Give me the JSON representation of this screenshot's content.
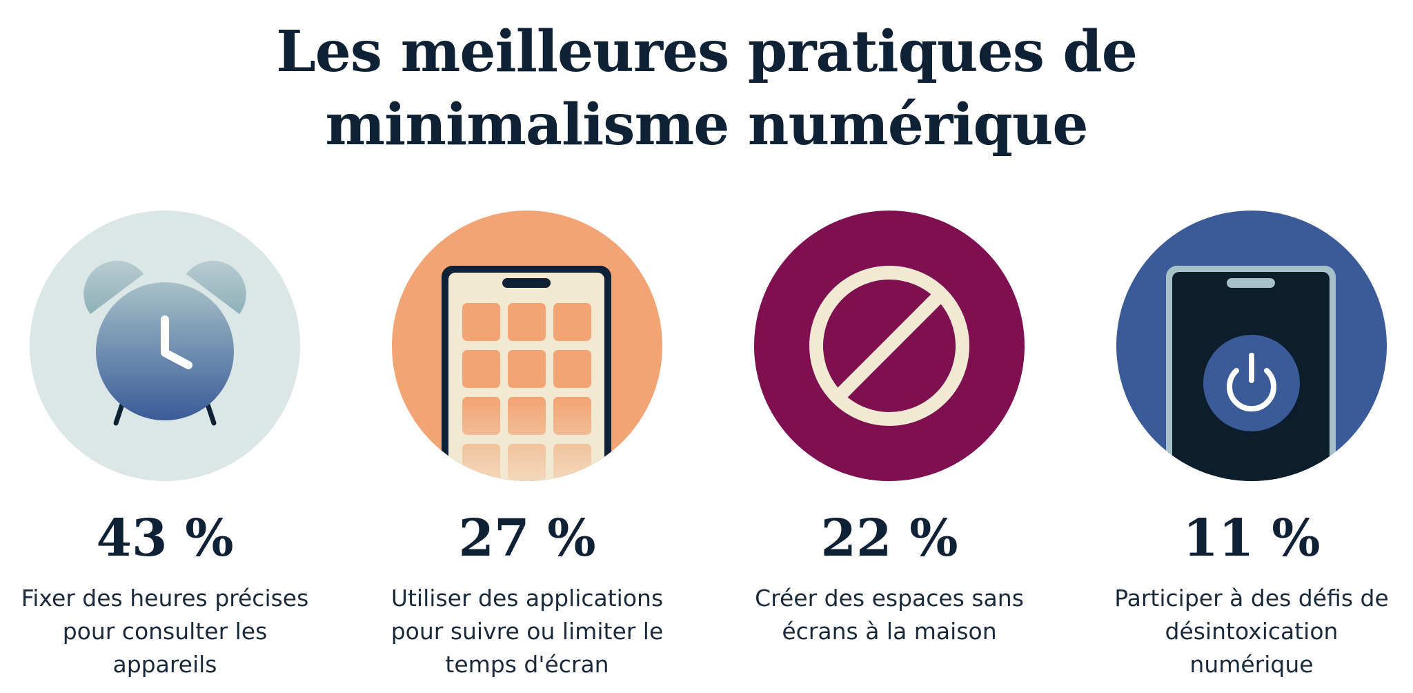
{
  "title": {
    "line1": "Les meilleures pratiques de",
    "line2": "minimalisme numérique"
  },
  "colors": {
    "text": "#0f2235",
    "alarm_bg": "#dbe6e6",
    "apps_bg": "#f3a475",
    "nosign_bg": "#7e0f50",
    "power_bg": "#3a5b98"
  },
  "items": [
    {
      "value": "43 %",
      "label": "Fixer des heures précises pour consulter les appareils",
      "icon": "alarm-clock-icon"
    },
    {
      "value": "27 %",
      "label": "Utiliser des applications pour suivre ou limiter le temps d'écran",
      "icon": "phone-apps-icon"
    },
    {
      "value": "22 %",
      "label": "Créer des espaces sans écrans à la maison",
      "icon": "prohibited-icon"
    },
    {
      "value": "11 %",
      "label": "Participer à des défis de désintoxication numérique",
      "icon": "phone-power-icon"
    }
  ]
}
